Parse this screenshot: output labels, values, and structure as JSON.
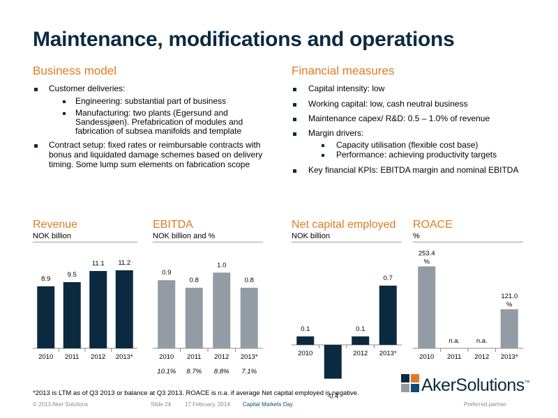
{
  "title": "Maintenance, modifications and operations",
  "business": {
    "heading": "Business model",
    "b1": "Customer deliveries:",
    "b1a": "Engineering: substantial part of business",
    "b1b_l1": "Manufacturing: two plants (Egersund and",
    "b1b_l2": "Sandessjøen). Prefabrication of modules and",
    "b1b_l3": "fabrication of subsea manifolds and template",
    "b2_l1": "Contract setup: fixed rates or reimbursable contracts with",
    "b2_l2": "bonus and liquidated damage schemes based on delivery",
    "b2_l3": "timing. Some lump sum elements on fabrication scope"
  },
  "financial": {
    "heading": "Financial measures",
    "f1": "Capital intensity: low",
    "f2": "Working capital: low, cash neutral business",
    "f3": "Maintenance capex/ R&D: 0.5 – 1.0% of revenue",
    "f4": "Margin drivers:",
    "f4a": "Capacity utilisation (flexible cost base)",
    "f4b": "Performance: achieving productivity targets",
    "f5": "Key financial KPIs: EBITDA margin and nominal EBITDA"
  },
  "colors": {
    "navy": "#0b2a40",
    "grey": "#939ca4",
    "orange": "#e07b1f"
  },
  "chart_data": [
    {
      "type": "bar",
      "title": "Revenue",
      "unit": "NOK billion",
      "categories": [
        "2010",
        "2011",
        "2012",
        "2013*"
      ],
      "values": [
        8.9,
        9.5,
        11.1,
        11.2
      ],
      "labels": [
        "8.9",
        "9.5",
        "11.1",
        "11.2"
      ],
      "color": "navy",
      "ylim": [
        0,
        13
      ]
    },
    {
      "type": "bar",
      "title": "EBITDA",
      "unit": "NOK billion and %",
      "categories": [
        "2010",
        "2011",
        "2012",
        "2013*"
      ],
      "values": [
        0.9,
        0.8,
        1.0,
        0.8
      ],
      "labels": [
        "0.9",
        "0.8",
        "1.0",
        "0.8"
      ],
      "margins": [
        "10.1%",
        "8.7%",
        "8.8%",
        "7.1%"
      ],
      "color": "grey",
      "ylim": [
        0,
        1.15
      ]
    },
    {
      "type": "bar",
      "title": "Net capital employed",
      "unit": "NOK billion",
      "categories": [
        "2010",
        "2011",
        "2012",
        "2013*"
      ],
      "values": [
        0.1,
        -0.4,
        0.1,
        0.7
      ],
      "labels": [
        "0.1",
        "-0.4",
        "0.1",
        "0.7"
      ],
      "color": "navy",
      "ylim": [
        -0.4,
        0.7
      ]
    },
    {
      "type": "bar",
      "title": "ROACE",
      "unit": "%",
      "categories": [
        "2010",
        "2011",
        "2012",
        "2013*"
      ],
      "values": [
        253.4,
        null,
        null,
        121.0
      ],
      "labels": [
        "253.4 %",
        "n.a.",
        "n.a.",
        "121.0 %"
      ],
      "color": "grey",
      "ylim": [
        0,
        280
      ]
    }
  ],
  "footnote": "*2013 is LTM as of Q3 2013 or balance at Q3 2013. ROACE is n.a. if average Net capital employed is negative.",
  "footer": {
    "copyright": "© 2013 Aker Solutions",
    "slide": "Slide 24",
    "date": "17 February, 2014",
    "event": "Capital Markets Day",
    "tagline": "Preferred partner"
  },
  "logo": {
    "text": "AkerSolutions",
    "tm": "™"
  }
}
